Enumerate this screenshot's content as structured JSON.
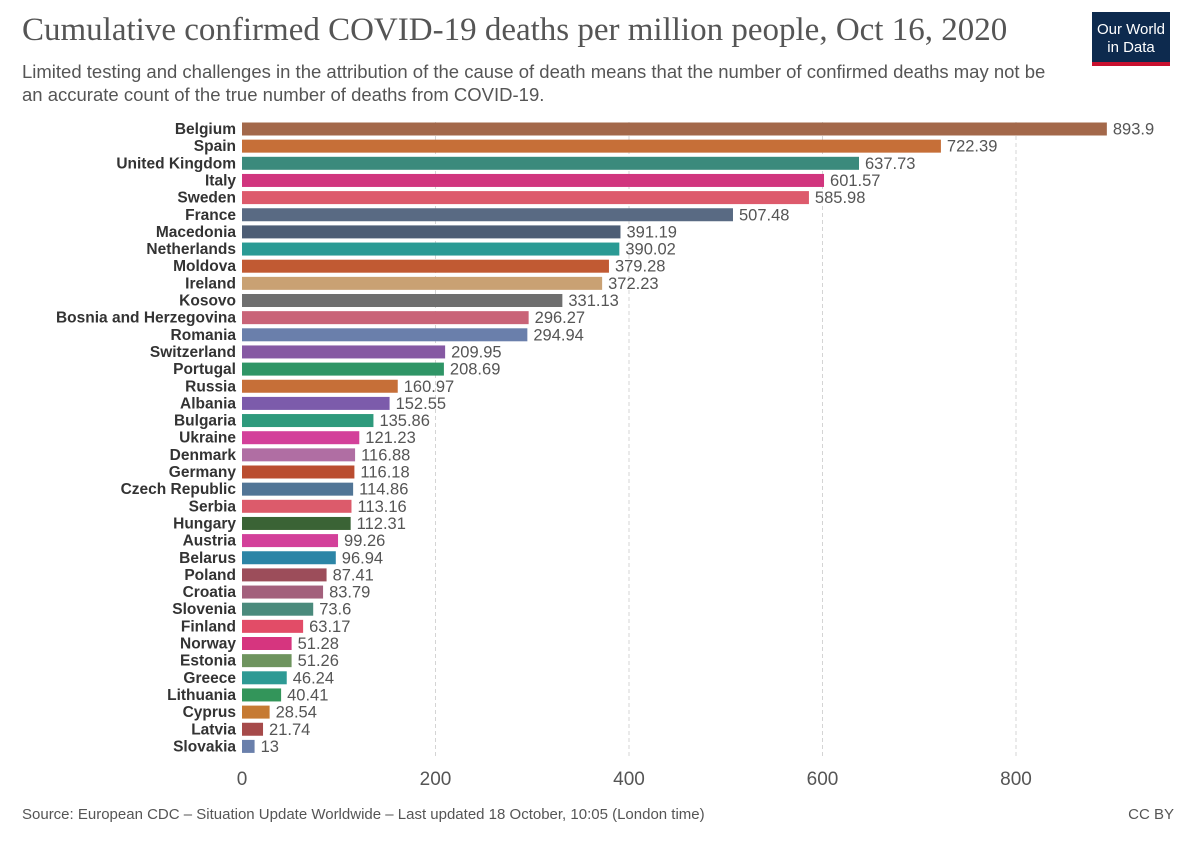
{
  "header": {
    "title": "Cumulative confirmed COVID-19 deaths per million people, Oct 16, 2020",
    "subtitle": "Limited testing and challenges in the attribution of the cause of death means that the number of confirmed deaths may not be an accurate count of the true number of deaths from COVID-19.",
    "logo_line1": "Our World",
    "logo_line2": "in Data"
  },
  "footer": {
    "source": "Source: European CDC – Situation Update Worldwide – Last updated 18 October, 10:05 (London time)",
    "license": "CC BY"
  },
  "chart_data": {
    "type": "bar",
    "orientation": "horizontal",
    "xlim": [
      0,
      900
    ],
    "xticks": [
      0,
      200,
      400,
      600,
      800
    ],
    "grid": "vertical dashed",
    "categories": [
      "Belgium",
      "Spain",
      "United Kingdom",
      "Italy",
      "Sweden",
      "France",
      "Macedonia",
      "Netherlands",
      "Moldova",
      "Ireland",
      "Kosovo",
      "Bosnia and Herzegovina",
      "Romania",
      "Switzerland",
      "Portugal",
      "Russia",
      "Albania",
      "Bulgaria",
      "Ukraine",
      "Denmark",
      "Germany",
      "Czech Republic",
      "Serbia",
      "Hungary",
      "Austria",
      "Belarus",
      "Poland",
      "Croatia",
      "Slovenia",
      "Finland",
      "Norway",
      "Estonia",
      "Greece",
      "Lithuania",
      "Cyprus",
      "Latvia",
      "Slovakia"
    ],
    "values": [
      893.9,
      722.39,
      637.73,
      601.57,
      585.98,
      507.48,
      391.19,
      390.02,
      379.28,
      372.23,
      331.13,
      296.27,
      294.94,
      209.95,
      208.69,
      160.97,
      152.55,
      135.86,
      121.23,
      116.88,
      116.18,
      114.86,
      113.16,
      112.31,
      99.26,
      96.94,
      87.41,
      83.79,
      73.6,
      63.17,
      51.28,
      51.26,
      46.24,
      40.41,
      28.54,
      21.74,
      13
    ],
    "value_labels": [
      "893.9",
      "722.39",
      "637.73",
      "601.57",
      "585.98",
      "507.48",
      "391.19",
      "390.02",
      "379.28",
      "372.23",
      "331.13",
      "296.27",
      "294.94",
      "209.95",
      "208.69",
      "160.97",
      "152.55",
      "135.86",
      "121.23",
      "116.88",
      "116.18",
      "114.86",
      "113.16",
      "112.31",
      "99.26",
      "96.94",
      "87.41",
      "83.79",
      "73.6",
      "63.17",
      "51.28",
      "51.26",
      "46.24",
      "40.41",
      "28.54",
      "21.74",
      "13"
    ],
    "colors": [
      "#a3684a",
      "#c66f38",
      "#3b8a7c",
      "#d1357e",
      "#dd5a6c",
      "#596a83",
      "#4d5d75",
      "#2a9a94",
      "#c15a33",
      "#c9a173",
      "#6f6f6f",
      "#c96478",
      "#6a7fab",
      "#8659a3",
      "#2f9566",
      "#c66f38",
      "#7c5bab",
      "#2e9a7c",
      "#d3409a",
      "#b06ea3",
      "#ba4d30",
      "#517596",
      "#dc5b6b",
      "#3a6335",
      "#d3409a",
      "#2c85a6",
      "#9c4d5a",
      "#a3607c",
      "#4a8a7c",
      "#e24c67",
      "#d6357f",
      "#6e945e",
      "#2e9a94",
      "#33955a",
      "#c67a33",
      "#a64a4a",
      "#6a7fab"
    ]
  }
}
